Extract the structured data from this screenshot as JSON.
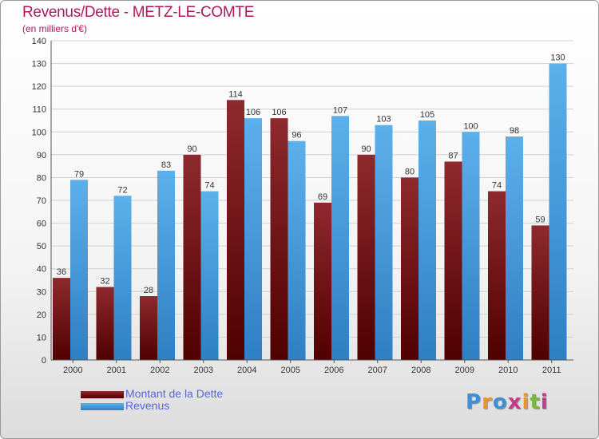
{
  "title": "Revenus/Dette - METZ-LE-COMTE",
  "subtitle": "(en milliers d'€)",
  "logo": {
    "text": "Proxiti",
    "colors": [
      "#3d8fd6",
      "#e8962a",
      "#3d8fd6",
      "#c43b8c",
      "#e8962a",
      "#78b83a",
      "#c43b8c"
    ]
  },
  "chart_data": {
    "type": "bar",
    "title": "Revenus/Dette - METZ-LE-COMTE",
    "subtitle": "(en milliers d'€)",
    "categories": [
      "2000",
      "2001",
      "2002",
      "2003",
      "2004",
      "2005",
      "2006",
      "2007",
      "2008",
      "2009",
      "2010",
      "2011"
    ],
    "series": [
      {
        "name": "Montant de la Dette",
        "color": "#7a1a1a",
        "values": [
          36,
          32,
          28,
          90,
          114,
          106,
          69,
          90,
          80,
          87,
          74,
          59
        ]
      },
      {
        "name": "Revenus",
        "color": "#4da3e0",
        "values": [
          79,
          72,
          83,
          74,
          106,
          96,
          107,
          103,
          105,
          100,
          98,
          130
        ]
      }
    ],
    "ylim": [
      0,
      140
    ],
    "yticks": [
      0,
      10,
      20,
      30,
      40,
      50,
      60,
      70,
      80,
      90,
      100,
      110,
      120,
      130,
      140
    ],
    "grid": true,
    "legend": "bottom-left"
  }
}
